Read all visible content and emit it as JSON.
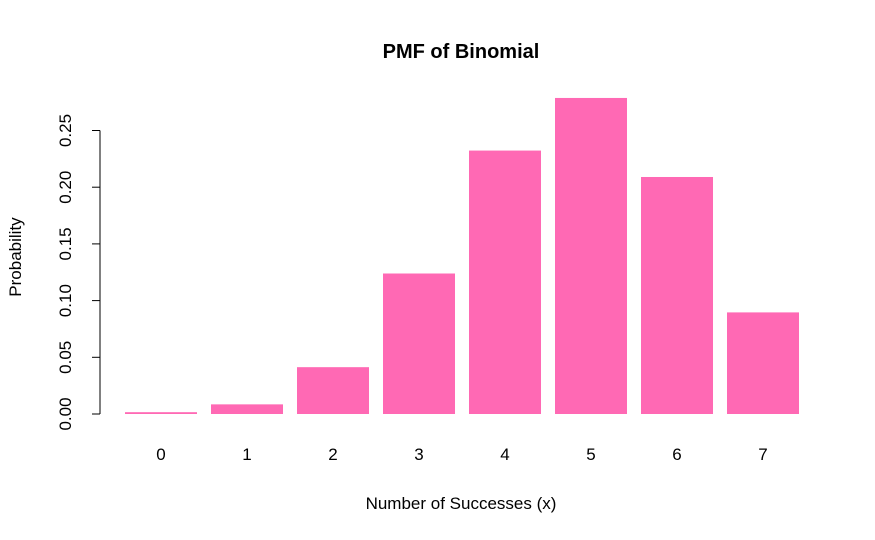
{
  "chart_data": {
    "type": "bar",
    "title": "PMF of Binomial",
    "xlabel": "Number of Successes (x)",
    "ylabel": "Probability",
    "categories": [
      "0",
      "1",
      "2",
      "3",
      "4",
      "5",
      "6",
      "7"
    ],
    "values": [
      0.0016,
      0.0085,
      0.0413,
      0.1239,
      0.2323,
      0.2787,
      0.209,
      0.0896
    ],
    "ylim": [
      0,
      0.28
    ],
    "yticks": [
      0.0,
      0.05,
      0.1,
      0.15,
      0.2,
      0.25
    ],
    "ytick_labels": [
      "0.00",
      "0.05",
      "0.10",
      "0.15",
      "0.20",
      "0.25"
    ],
    "bar_color": "#ff69b4",
    "grid": false,
    "legend": "none"
  }
}
